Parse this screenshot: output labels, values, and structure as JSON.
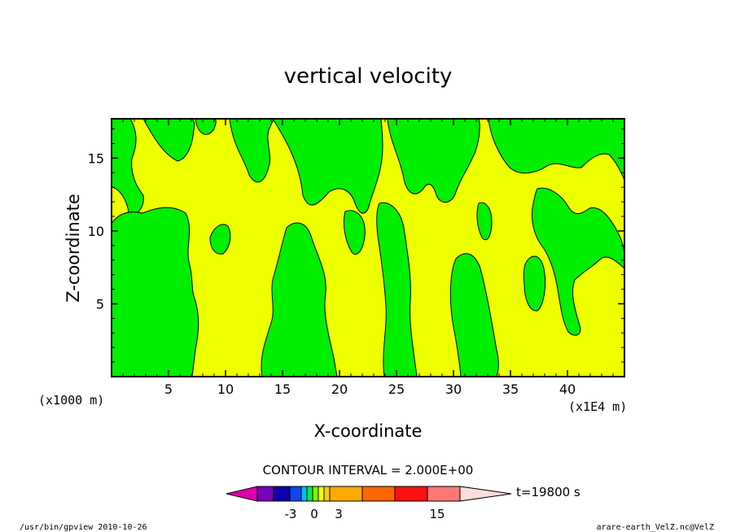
{
  "chart_data": {
    "type": "heatmap",
    "title": "vertical velocity",
    "xlabel": "X-coordinate",
    "ylabel": "Z-coordinate",
    "x_unit_left": "(x1000 m)",
    "x_unit_right": "(x1E4 m)",
    "xlim": [
      0,
      45
    ],
    "ylim": [
      0,
      17.7
    ],
    "xticks": [
      "5",
      "10",
      "15",
      "20",
      "25",
      "30",
      "35",
      "40"
    ],
    "yticks": [
      "5",
      "10",
      "15"
    ],
    "field_colors": {
      "positive_low": "#eeff00",
      "negative_low": "#00ee00"
    },
    "contour_interval_text": "CONTOUR INTERVAL = 2.000E+00",
    "time_label": "t=19800 s",
    "colorbar": {
      "levels": [
        "-3",
        "0",
        "3",
        "15"
      ],
      "colors": [
        "#dd00aa",
        "#7700bb",
        "#1100aa",
        "#1144ee",
        "#00bbff",
        "#00ee44",
        "#88ee00",
        "#eeff00",
        "#ffcc00",
        "#ffaa00",
        "#ff6600",
        "#ff1111",
        "#ff7777",
        "#ffbbbb",
        "#ffdddd"
      ]
    },
    "footer_left": "/usr/bin/gpview   2010-10-26",
    "footer_right": "arare-earth_VelZ.nc@VelZ",
    "grid": false
  }
}
